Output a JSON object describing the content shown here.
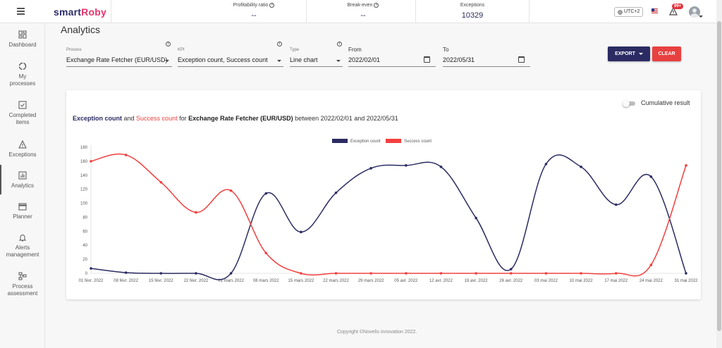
{
  "brand": {
    "part1": "smart",
    "part2": "Roby"
  },
  "header": {
    "kpis": [
      {
        "label": "Profitability ratio",
        "value": "--"
      },
      {
        "label": "Break-even",
        "value": "--"
      },
      {
        "label": "Exceptions",
        "value": "10329"
      }
    ],
    "timezone": "UTC+2",
    "alerts_badge": "99+"
  },
  "sidebar": {
    "items": [
      {
        "label": "Dashboard",
        "icon": "dashboard-icon"
      },
      {
        "label": "My processes",
        "icon": "processes-icon"
      },
      {
        "label": "Completed items",
        "icon": "checkbox-icon"
      },
      {
        "label": "Exceptions",
        "icon": "warning-icon"
      },
      {
        "label": "Analytics",
        "icon": "analytics-icon"
      },
      {
        "label": "Planner",
        "icon": "calendar-icon"
      },
      {
        "label": "Alerts management",
        "icon": "bell-icon"
      },
      {
        "label": "Process assessment",
        "icon": "assessment-icon"
      }
    ]
  },
  "page": {
    "title": "Analytics"
  },
  "filters": {
    "process": {
      "label": "Process",
      "value": "Exchange Rate Fetcher (EUR/USD)"
    },
    "kpi": {
      "label": "KPI",
      "value": "Exception count, Success count"
    },
    "type": {
      "label": "Type",
      "value": "Line chart"
    },
    "from": {
      "label": "From",
      "value": "2022/02/01"
    },
    "to": {
      "label": "To",
      "value": "2022/05/31"
    }
  },
  "actions": {
    "export": "EXPORT",
    "clear": "CLEAR"
  },
  "card": {
    "cumulative_label": "Cumulative result",
    "subtitle": {
      "kpi1": "Exception count",
      "and": " and ",
      "kpi2": "Success count",
      "for": " for ",
      "process": "Exchange Rate Fetcher (EUR/USD)",
      "between": " between 2022/02/01 and 2022/05/31"
    }
  },
  "chart_data": {
    "type": "line",
    "title": "",
    "xlabel": "",
    "ylabel": "",
    "ylim": [
      0,
      180
    ],
    "yticks": [
      0,
      20,
      40,
      60,
      80,
      100,
      120,
      140,
      160,
      180
    ],
    "legend_position": "top-center",
    "categories": [
      "01 févr. 2022",
      "08 févr. 2022",
      "15 févr. 2022",
      "22 févr. 2022",
      "01 mars 2022",
      "08 mars 2022",
      "15 mars 2022",
      "22 mars 2022",
      "29 mars 2022",
      "05 avr. 2022",
      "12 avr. 2022",
      "19 avr. 2022",
      "26 avr. 2022",
      "03 mai 2022",
      "10 mai 2022",
      "17 mai 2022",
      "24 mai 2022",
      "31 mai 2022"
    ],
    "series": [
      {
        "name": "Exception count",
        "color": "#2b2b63",
        "values": [
          7,
          1,
          0,
          0,
          0,
          114,
          59,
          115,
          150,
          154,
          152,
          79,
          6,
          156,
          152,
          98,
          138,
          0
        ]
      },
      {
        "name": "Success count",
        "color": "#f2403f",
        "values": [
          160,
          169,
          130,
          87,
          118,
          29,
          0,
          0,
          0,
          0,
          0,
          0,
          0,
          0,
          0,
          0,
          12,
          154
        ]
      }
    ]
  },
  "footer": "Copyright ©Novelis innovation 2022."
}
